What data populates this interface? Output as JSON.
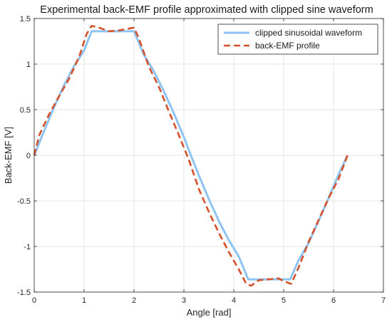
{
  "chart_data": {
    "type": "line",
    "title": "Experimental back-EMF profile approximated with clipped sine waveform",
    "xlabel": "Angle [rad]",
    "ylabel": "Back-EMF [V]",
    "xlim": [
      0,
      7
    ],
    "ylim": [
      -1.5,
      1.5
    ],
    "xticks": [
      0,
      1,
      2,
      3,
      4,
      5,
      6,
      7
    ],
    "yticks": [
      -1.5,
      -1,
      -0.5,
      0,
      0.5,
      1,
      1.5
    ],
    "xtick_labels": [
      "0",
      "1",
      "2",
      "3",
      "4",
      "5",
      "6",
      "7"
    ],
    "ytick_labels": [
      "-1.5",
      "-1",
      "-0.5",
      "0",
      "0.5",
      "1",
      "1.5"
    ],
    "grid": true,
    "legend_position": "top-right",
    "series": [
      {
        "name": "clipped sinusoidal waveform",
        "color": "#8fc4f2",
        "style": "solid",
        "x": [
          0,
          0.2,
          0.4,
          0.6,
          0.8,
          1.0,
          1.15,
          1.3,
          1.5,
          1.7,
          1.9,
          2.0,
          2.2,
          2.4,
          2.6,
          2.8,
          3.0,
          3.14,
          3.3,
          3.5,
          3.7,
          3.9,
          4.1,
          4.29,
          4.5,
          4.7,
          4.9,
          5.13,
          5.3,
          5.5,
          5.7,
          5.9,
          6.1,
          6.28
        ],
        "y": [
          0,
          0.27,
          0.53,
          0.77,
          0.98,
          1.15,
          1.36,
          1.36,
          1.36,
          1.36,
          1.36,
          1.36,
          1.1,
          0.92,
          0.7,
          0.46,
          0.2,
          0.0,
          -0.22,
          -0.48,
          -0.72,
          -0.93,
          -1.11,
          -1.36,
          -1.36,
          -1.36,
          -1.36,
          -1.36,
          -1.15,
          -0.96,
          -0.72,
          -0.47,
          -0.21,
          0
        ]
      },
      {
        "name": "back-EMF profile",
        "color": "#d4512a",
        "style": "dashed",
        "x": [
          0,
          0.1,
          0.3,
          0.5,
          0.7,
          0.9,
          1.05,
          1.15,
          1.3,
          1.5,
          1.7,
          1.9,
          2.0,
          2.1,
          2.3,
          2.5,
          2.7,
          2.9,
          3.1,
          3.3,
          3.5,
          3.7,
          3.9,
          4.1,
          4.25,
          4.35,
          4.5,
          4.7,
          4.9,
          5.0,
          5.15,
          5.3,
          5.5,
          5.7,
          5.9,
          6.1,
          6.28
        ],
        "y": [
          0,
          0.22,
          0.45,
          0.65,
          0.84,
          1.08,
          1.33,
          1.42,
          1.4,
          1.36,
          1.37,
          1.39,
          1.4,
          1.28,
          0.97,
          0.75,
          0.48,
          0.22,
          -0.05,
          -0.37,
          -0.62,
          -0.85,
          -1.06,
          -1.25,
          -1.41,
          -1.43,
          -1.37,
          -1.36,
          -1.35,
          -1.38,
          -1.41,
          -1.23,
          -0.95,
          -0.71,
          -0.47,
          -0.26,
          0
        ]
      }
    ]
  }
}
